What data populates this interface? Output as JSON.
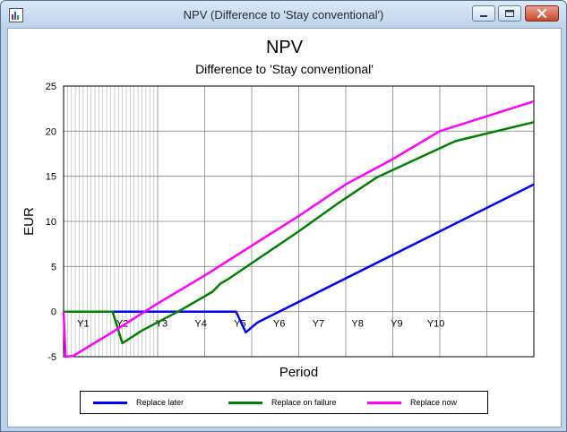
{
  "window": {
    "title": "NPV (Difference to 'Stay conventional')",
    "controls": [
      "minimize-icon",
      "maximize-icon",
      "close-icon"
    ]
  },
  "chart_data": {
    "type": "line",
    "title": "NPV",
    "subtitle": "Difference to 'Stay conventional'",
    "xlabel": "Period",
    "ylabel": "EUR",
    "ylim": [
      -5,
      25
    ],
    "yticks": [
      -5,
      0,
      5,
      10,
      15,
      20,
      25
    ],
    "xlim": [
      0,
      120
    ],
    "xtick_labels": [
      {
        "x": 5,
        "label": "Y1"
      },
      {
        "x": 15,
        "label": "Y2"
      },
      {
        "x": 25,
        "label": "Y3"
      },
      {
        "x": 35,
        "label": "Y4"
      },
      {
        "x": 45,
        "label": "Y5"
      },
      {
        "x": 55,
        "label": "Y6"
      },
      {
        "x": 65,
        "label": "Y7"
      },
      {
        "x": 75,
        "label": "Y8"
      },
      {
        "x": 85,
        "label": "Y9"
      },
      {
        "x": 95,
        "label": "Y10"
      }
    ],
    "grid": true,
    "legend_position": "bottom",
    "series": [
      {
        "name": "Replace later",
        "color": "#0000ff",
        "points": [
          [
            0,
            0
          ],
          [
            44,
            0
          ],
          [
            46.5,
            -2.3
          ],
          [
            49.5,
            -1.2
          ],
          [
            120,
            14.1
          ]
        ]
      },
      {
        "name": "Replace on failure",
        "color": "#008000",
        "points": [
          [
            0,
            0
          ],
          [
            12.5,
            0
          ],
          [
            15,
            -3.5
          ],
          [
            20,
            -2.1
          ],
          [
            30,
            0.2
          ],
          [
            38,
            2.2
          ],
          [
            40,
            3.1
          ],
          [
            42,
            3.6
          ],
          [
            60,
            8.9
          ],
          [
            70,
            12.0
          ],
          [
            80,
            14.9
          ],
          [
            100,
            18.9
          ],
          [
            120,
            21.0
          ]
        ]
      },
      {
        "name": "Replace now",
        "color": "#ff00ff",
        "points": [
          [
            0,
            0
          ],
          [
            0.5,
            -5.0
          ],
          [
            2.5,
            -4.9
          ],
          [
            12,
            -2.4
          ],
          [
            24,
            0.9
          ],
          [
            36,
            4.0
          ],
          [
            48,
            7.3
          ],
          [
            60,
            10.6
          ],
          [
            72,
            14.1
          ],
          [
            84,
            16.9
          ],
          [
            96,
            20.0
          ],
          [
            120,
            23.3
          ]
        ]
      }
    ]
  }
}
